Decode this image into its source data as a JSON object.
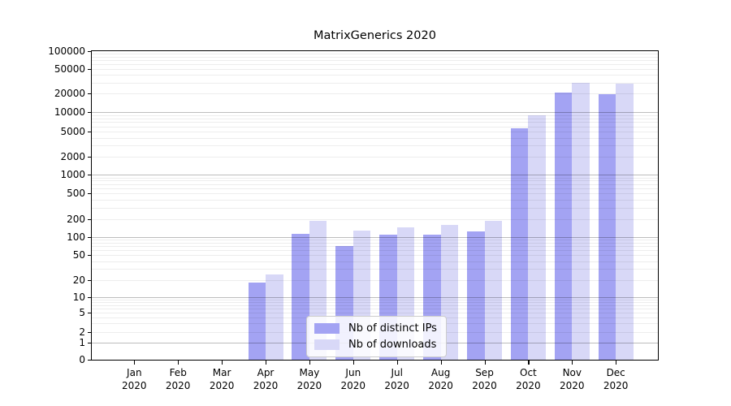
{
  "chart_data": {
    "type": "bar",
    "title": "MatrixGenerics 2020",
    "xlabel": "",
    "ylabel": "",
    "scale": "symlog",
    "grid": true,
    "legend_position": "lower-center",
    "months": [
      "Jan",
      "Feb",
      "Mar",
      "Apr",
      "May",
      "Jun",
      "Jul",
      "Aug",
      "Sep",
      "Oct",
      "Nov",
      "Dec"
    ],
    "year": "2020",
    "yticks": [
      0,
      1,
      2,
      5,
      10,
      20,
      50,
      100,
      200,
      500,
      1000,
      2000,
      5000,
      10000,
      20000,
      50000,
      100000
    ],
    "ylim": [
      0,
      100000
    ],
    "series": [
      {
        "name": "Nb of distinct IPs",
        "color": "#a3a3f3",
        "values": [
          0,
          0,
          0,
          18,
          112,
          70,
          110,
          110,
          125,
          5600,
          20500,
          19400
        ]
      },
      {
        "name": "Nb of downloads",
        "color": "#d8d8f7",
        "values": [
          0,
          0,
          0,
          25,
          190,
          130,
          145,
          160,
          188,
          8900,
          30000,
          28500
        ]
      }
    ]
  }
}
